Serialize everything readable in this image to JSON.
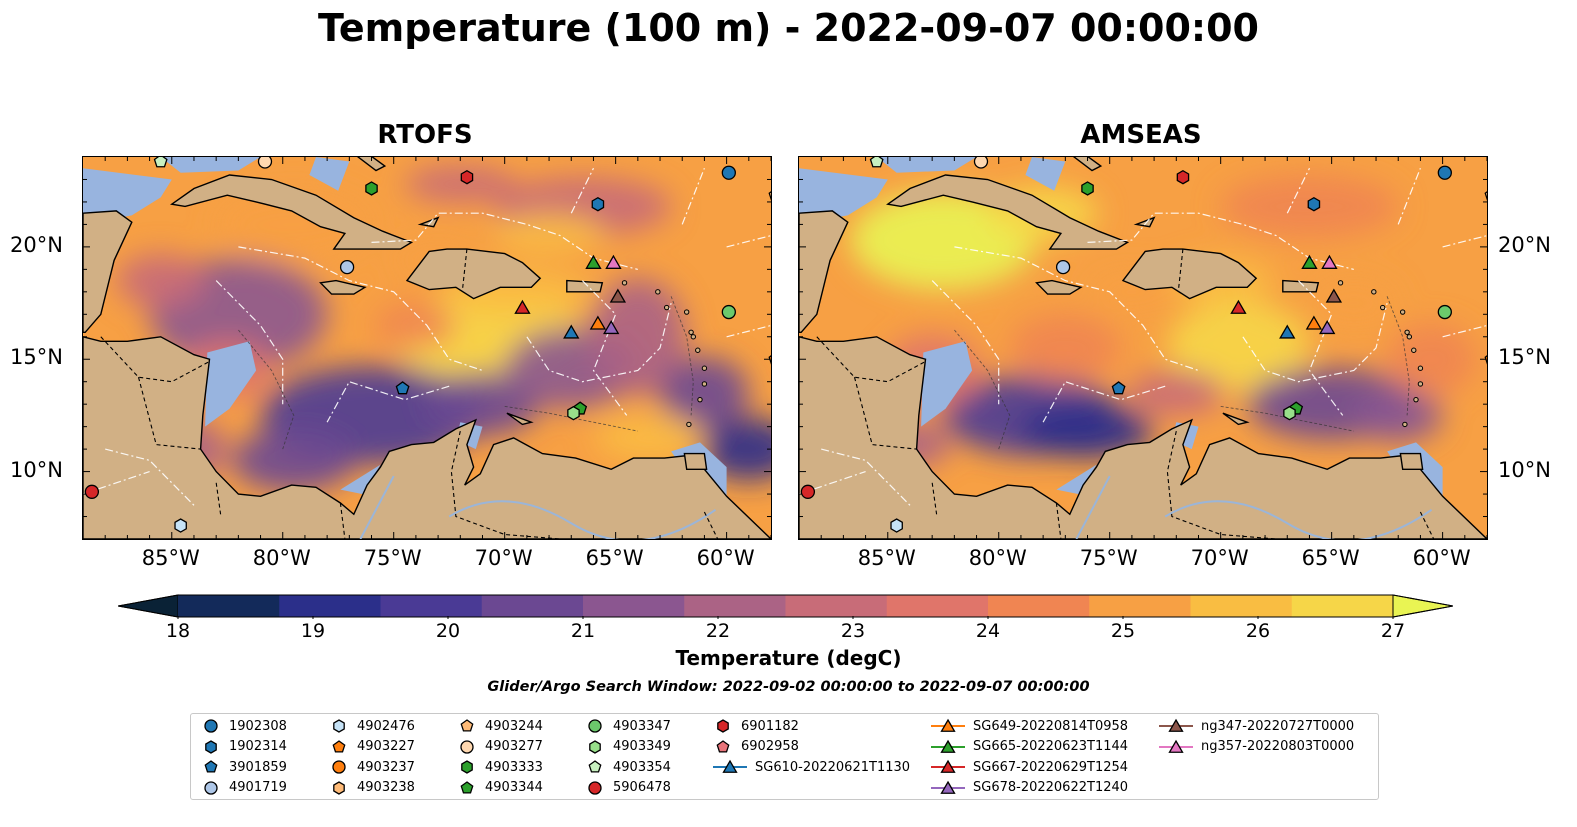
{
  "title": "Temperature (100 m) - 2022-09-07 00:00:00",
  "panels": [
    {
      "title": "RTOFS"
    },
    {
      "title": "AMSEAS"
    }
  ],
  "axes": {
    "lon_ticks": [
      "85°W",
      "80°W",
      "75°W",
      "70°W",
      "65°W",
      "60°W"
    ],
    "lat_ticks": [
      "20°N",
      "15°N",
      "10°N"
    ]
  },
  "colorbar": {
    "label": "Temperature (degC)",
    "ticks": [
      "18",
      "19",
      "20",
      "21",
      "22",
      "23",
      "24",
      "25",
      "26",
      "27"
    ],
    "range": [
      18,
      27
    ],
    "colors": [
      "#0a2236",
      "#132a5a",
      "#2b2f8a",
      "#4a3a95",
      "#6b4892",
      "#8b5690",
      "#ab6385",
      "#c86c78",
      "#e0756a",
      "#f08552",
      "#f7a044",
      "#f9bd42",
      "#f6d648",
      "#e9f453"
    ],
    "extend": "both"
  },
  "search_window": "Glider/Argo Search Window: 2022-09-02 00:00:00 to 2022-09-07 00:00:00",
  "legend": [
    {
      "label": "1902308",
      "marker": "circle",
      "color": "#1f77b4"
    },
    {
      "label": "1902314",
      "marker": "hexagon",
      "color": "#1f77b4"
    },
    {
      "label": "3901859",
      "marker": "pentagon",
      "color": "#1f77b4"
    },
    {
      "label": "4901719",
      "marker": "circle",
      "color": "#aec7e8"
    },
    {
      "label": "4902476",
      "marker": "hexagon",
      "color": "#c6e3f7"
    },
    {
      "label": "4903227",
      "marker": "pentagon",
      "color": "#ff7f0e"
    },
    {
      "label": "4903237",
      "marker": "circle",
      "color": "#ff7f0e"
    },
    {
      "label": "4903238",
      "marker": "hexagon",
      "color": "#ffbb78"
    },
    {
      "label": "4903244",
      "marker": "pentagon",
      "color": "#ffbb78"
    },
    {
      "label": "4903277",
      "marker": "circle",
      "color": "#ffd8b0"
    },
    {
      "label": "4903333",
      "marker": "hexagon",
      "color": "#2ca02c"
    },
    {
      "label": "4903344",
      "marker": "pentagon",
      "color": "#2ca02c"
    },
    {
      "label": "4903347",
      "marker": "circle",
      "color": "#6cc96c"
    },
    {
      "label": "4903349",
      "marker": "hexagon",
      "color": "#98df8a"
    },
    {
      "label": "4903354",
      "marker": "pentagon",
      "color": "#c8f0c0"
    },
    {
      "label": "5906478",
      "marker": "circle",
      "color": "#d62728"
    },
    {
      "label": "6901182",
      "marker": "hexagon",
      "color": "#d62728"
    },
    {
      "label": "6902958",
      "marker": "pentagon",
      "color": "#e8747a"
    },
    {
      "label": "SG610-20220621T1130",
      "marker": "triangle-line",
      "color": "#1f77b4"
    },
    {
      "label": "SG649-20220814T0958",
      "marker": "triangle-line",
      "color": "#ff7f0e"
    },
    {
      "label": "SG665-20220623T1144",
      "marker": "triangle-line",
      "color": "#2ca02c"
    },
    {
      "label": "SG667-20220629T1254",
      "marker": "triangle-line",
      "color": "#d62728"
    },
    {
      "label": "SG678-20220622T1240",
      "marker": "triangle-line",
      "color": "#9467bd"
    },
    {
      "label": "ng347-20220727T0000",
      "marker": "triangle-line",
      "color": "#8c564b"
    },
    {
      "label": "ng357-20220803T0000",
      "marker": "triangle-line",
      "color": "#e377c2"
    }
  ],
  "observations": [
    {
      "id": "1902308",
      "lon": -59.9,
      "lat": 23.3
    },
    {
      "id": "1902314",
      "lon": -65.8,
      "lat": 21.9
    },
    {
      "id": "3901859",
      "lon": -74.6,
      "lat": 13.7
    },
    {
      "id": "4901719",
      "lon": -77.1,
      "lat": 19.1
    },
    {
      "id": "4902476",
      "lon": -84.6,
      "lat": 7.6
    },
    {
      "id": "4903244",
      "lon": -57.8,
      "lat": 22.3
    },
    {
      "id": "4903227",
      "lon": -57.8,
      "lat": 15.0
    },
    {
      "id": "4903277",
      "lon": -80.8,
      "lat": 23.8
    },
    {
      "id": "4903333",
      "lon": -76.0,
      "lat": 22.6
    },
    {
      "id": "4903344",
      "lon": -66.6,
      "lat": 12.8
    },
    {
      "id": "4903347",
      "lon": -59.9,
      "lat": 17.1
    },
    {
      "id": "4903349",
      "lon": -66.9,
      "lat": 12.6
    },
    {
      "id": "4903354",
      "lon": -85.5,
      "lat": 23.8
    },
    {
      "id": "5906478",
      "lon": -88.6,
      "lat": 9.1
    },
    {
      "id": "6901182",
      "lon": -71.7,
      "lat": 23.1
    },
    {
      "id": "SG610-20220621T1130",
      "lon": -67.0,
      "lat": 16.2
    },
    {
      "id": "SG649-20220814T0958",
      "lon": -65.8,
      "lat": 16.6
    },
    {
      "id": "SG665-20220623T1144",
      "lon": -66.0,
      "lat": 19.3
    },
    {
      "id": "SG667-20220629T1254",
      "lon": -69.2,
      "lat": 17.3
    },
    {
      "id": "SG678-20220622T1240",
      "lon": -65.2,
      "lat": 16.4
    },
    {
      "id": "ng347-20220727T0000",
      "lon": -64.9,
      "lat": 17.8
    },
    {
      "id": "ng357-20220803T0000",
      "lon": -65.1,
      "lat": 19.3
    }
  ]
}
